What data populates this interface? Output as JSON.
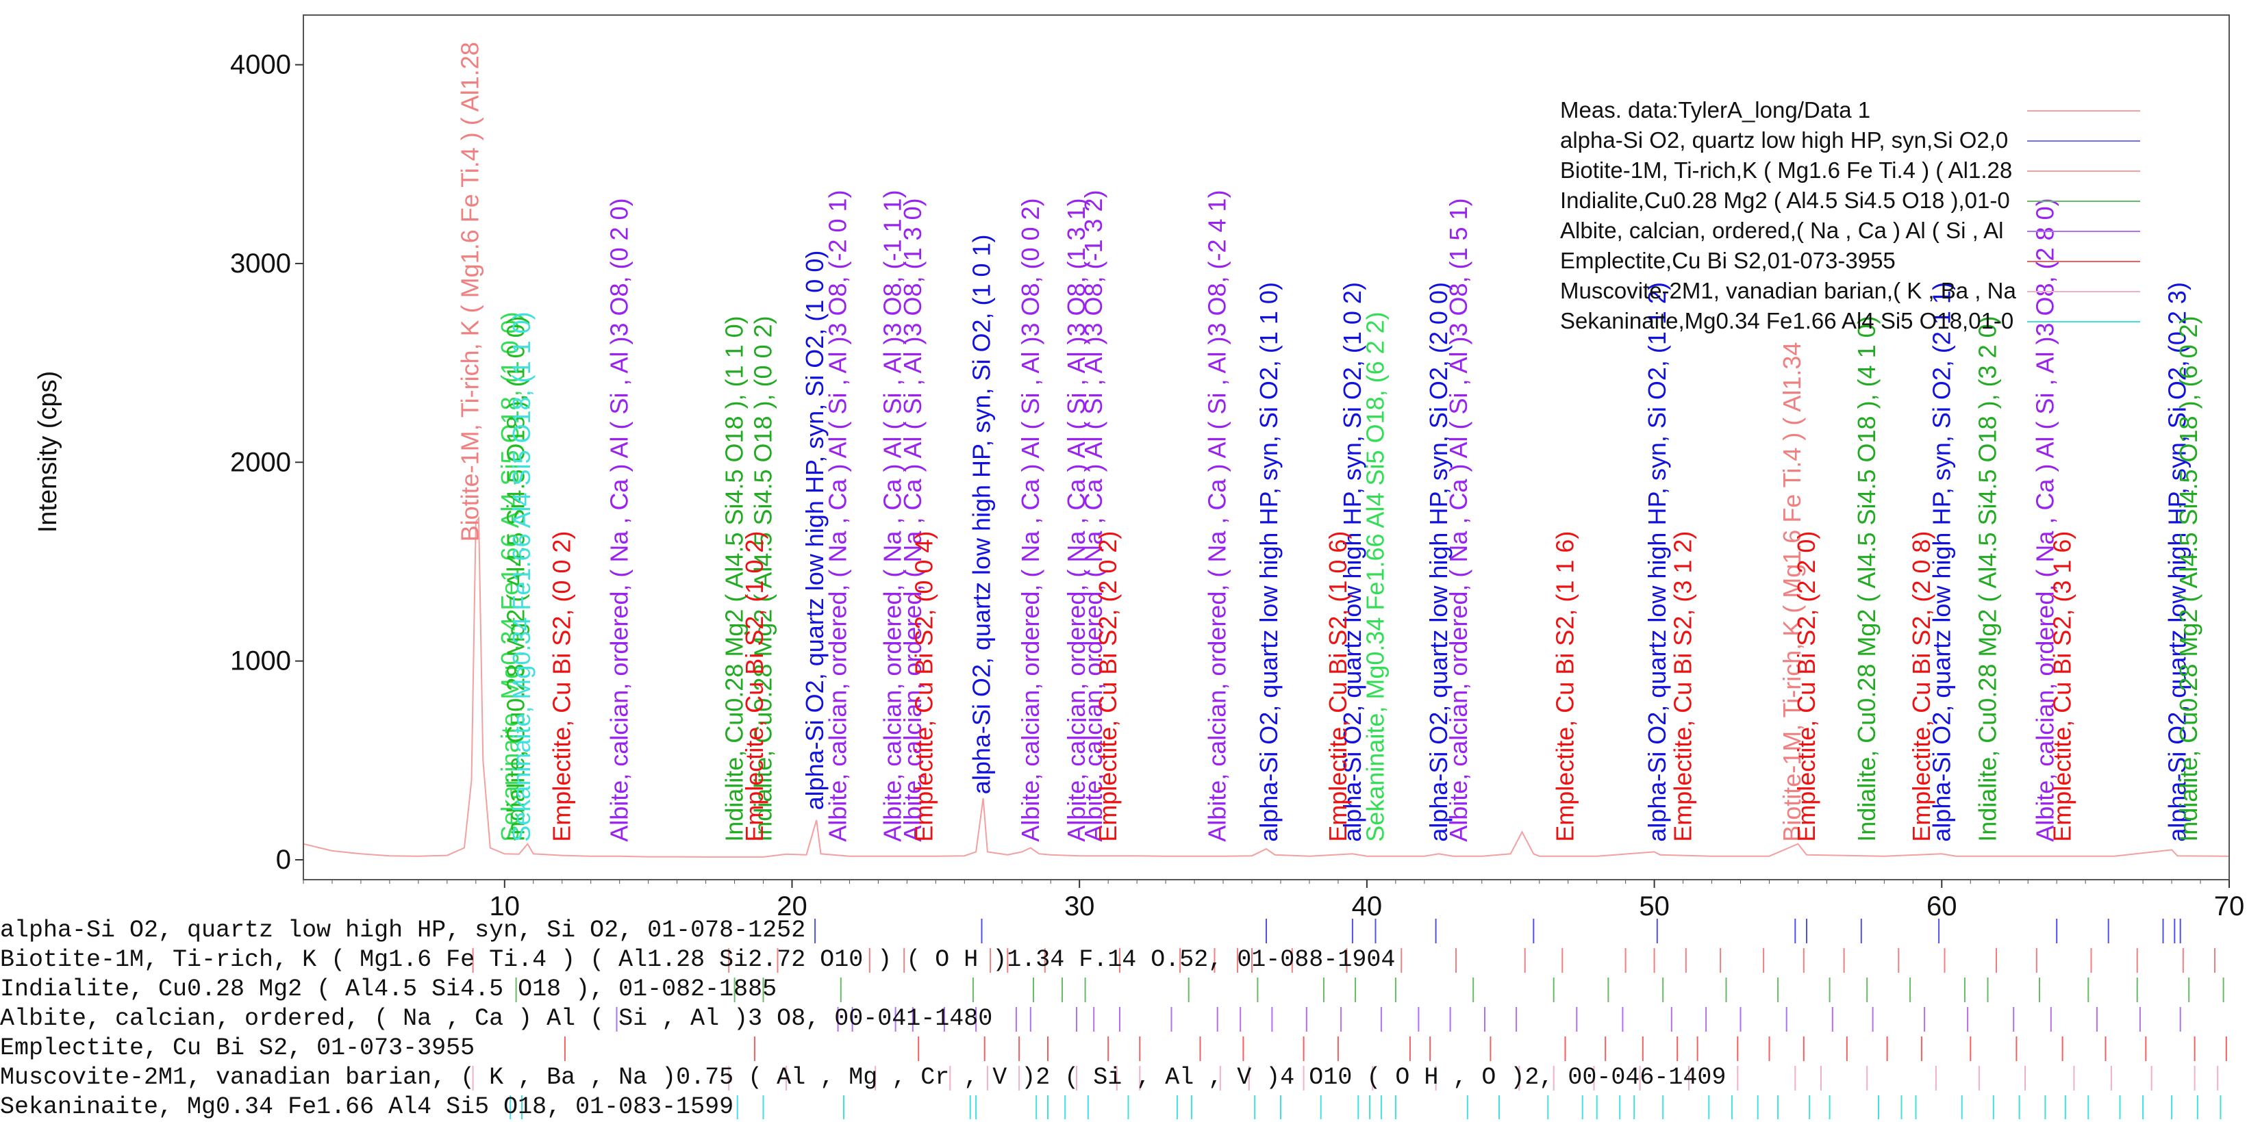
{
  "chart_data": {
    "type": "line",
    "xlim": [
      3,
      70
    ],
    "ylim": [
      -100,
      4250
    ],
    "x_ticks": [
      10,
      20,
      30,
      40,
      50,
      60,
      70
    ],
    "y_ticks": [
      0,
      1000,
      2000,
      3000,
      4000
    ],
    "ylabel": "Intensity (cps)",
    "xlabel": "",
    "measured": {
      "name": "Meas. data:TylerA_long/Data 1",
      "color": "#f4a0a0",
      "points": [
        [
          3,
          80
        ],
        [
          4,
          45
        ],
        [
          5,
          30
        ],
        [
          6,
          20
        ],
        [
          7,
          18
        ],
        [
          8,
          22
        ],
        [
          8.6,
          60
        ],
        [
          8.85,
          400
        ],
        [
          9.0,
          1700
        ],
        [
          9.1,
          1720
        ],
        [
          9.25,
          500
        ],
        [
          9.5,
          60
        ],
        [
          10,
          30
        ],
        [
          10.5,
          28
        ],
        [
          10.8,
          80
        ],
        [
          11,
          30
        ],
        [
          12,
          22
        ],
        [
          13,
          18
        ],
        [
          14,
          18
        ],
        [
          15,
          15
        ],
        [
          16,
          15
        ],
        [
          17,
          14
        ],
        [
          18,
          14
        ],
        [
          19,
          14
        ],
        [
          19.8,
          28
        ],
        [
          20.5,
          25
        ],
        [
          20.85,
          200
        ],
        [
          21.0,
          30
        ],
        [
          22,
          18
        ],
        [
          23,
          18
        ],
        [
          24,
          18
        ],
        [
          25,
          18
        ],
        [
          26,
          20
        ],
        [
          26.4,
          40
        ],
        [
          26.65,
          310
        ],
        [
          26.8,
          40
        ],
        [
          27.5,
          25
        ],
        [
          28,
          40
        ],
        [
          28.3,
          60
        ],
        [
          28.6,
          30
        ],
        [
          29,
          25
        ],
        [
          30,
          20
        ],
        [
          31,
          20
        ],
        [
          32,
          20
        ],
        [
          33,
          18
        ],
        [
          34,
          18
        ],
        [
          35,
          18
        ],
        [
          36,
          20
        ],
        [
          36.5,
          55
        ],
        [
          36.8,
          25
        ],
        [
          38,
          18
        ],
        [
          39.5,
          30
        ],
        [
          40,
          18
        ],
        [
          41,
          18
        ],
        [
          42,
          18
        ],
        [
          42.5,
          30
        ],
        [
          43,
          18
        ],
        [
          44,
          18
        ],
        [
          45,
          30
        ],
        [
          45.4,
          140
        ],
        [
          45.8,
          30
        ],
        [
          46,
          18
        ],
        [
          48,
          18
        ],
        [
          50,
          40
        ],
        [
          50.2,
          25
        ],
        [
          52,
          18
        ],
        [
          54,
          18
        ],
        [
          55,
          80
        ],
        [
          55.3,
          25
        ],
        [
          58,
          18
        ],
        [
          60,
          30
        ],
        [
          60.5,
          18
        ],
        [
          62,
          18
        ],
        [
          64,
          18
        ],
        [
          66,
          18
        ],
        [
          68,
          50
        ],
        [
          68.2,
          20
        ],
        [
          70,
          18
        ]
      ]
    },
    "legend": {
      "placement": "top-right",
      "entries": [
        {
          "text": "Meas. data:TylerA_long/Data 1",
          "color": "#f4a0a0"
        },
        {
          "text": "alpha-Si O2, quartz low high HP, syn,Si O2,0",
          "color": "#7070f0"
        },
        {
          "text": "Biotite-1M, Ti-rich,K ( Mg1.6 Fe Ti.4 ) ( Al1.28",
          "color": "#f4a0a0"
        },
        {
          "text": "Indialite,Cu0.28 Mg2 ( Al4.5 Si4.5 O18 ),01-0",
          "color": "#66bb66"
        },
        {
          "text": "Albite, calcian, ordered,( Na , Ca ) Al ( Si , Al",
          "color": "#b070f0"
        },
        {
          "text": "Emplectite,Cu Bi S2,01-073-3955",
          "color": "#f06060"
        },
        {
          "text": "Muscovite-2M1, vanadian barian,( K , Ba , Na",
          "color": "#f0b0c8"
        },
        {
          "text": "Sekaninaite,Mg0.34 Fe1.66 Al4 Si5 O18,01-0",
          "color": "#40e0e0"
        }
      ]
    },
    "peak_labels": [
      {
        "x": 8.8,
        "y": 1600,
        "text": "Biotite-1M, Ti-rich, K ( Mg1.6 Fe Ti.4 ) ( Al1.28",
        "color": "#f08080"
      },
      {
        "x": 10.2,
        "y": 90,
        "text": "Sekaninaite, Mg0.34 Fe1.66 Al4 Si5 O18, (1 0 0)",
        "color": "#33dd55"
      },
      {
        "x": 10.4,
        "y": 90,
        "text": "Indialite, Cu0.28 Mg2 ( Al4.5 Si4.5 O18 ), (1 0 0)",
        "color": "#22bb22"
      },
      {
        "x": 10.6,
        "y": 90,
        "text": "Sekaninaite, Mg0.34 Fe1.66 Al4 Si5 O18, (1 1 0)",
        "color": "#40e0e0"
      },
      {
        "x": 12.0,
        "y": 90,
        "text": "Emplectite, Cu Bi S2, (0 0 2)",
        "color": "#ee1111"
      },
      {
        "x": 14.0,
        "y": 90,
        "text": "Albite, calcian, ordered, ( Na , Ca ) Al ( Si , Al )3 O8, (0 2 0)",
        "color": "#9922ee"
      },
      {
        "x": 18.0,
        "y": 90,
        "text": "Indialite, Cu0.28 Mg2 ( Al4.5 Si4.5 O18 ), (1 1 0)",
        "color": "#22aa22"
      },
      {
        "x": 19.0,
        "y": 90,
        "text": "Indialite, Cu0.28 Mg2 ( Al4.5 Si4.5 O18 ), (0 0 2)",
        "color": "#22aa22"
      },
      {
        "x": 18.7,
        "y": 90,
        "text": "Emplectite, Cu Bi S2, (1 0 2)",
        "color": "#ee1111"
      },
      {
        "x": 20.8,
        "y": 250,
        "text": "alpha-Si O2, quartz low high HP, syn, Si O2, (1 0 0)",
        "color": "#1111dd"
      },
      {
        "x": 21.6,
        "y": 90,
        "text": "Albite, calcian, ordered, ( Na , Ca ) Al ( Si , Al )3 O8, (-2 0 1)",
        "color": "#9922ee"
      },
      {
        "x": 23.5,
        "y": 90,
        "text": "Albite, calcian, ordered, ( Na , Ca ) Al ( Si , Al )3 O8, (-1 1 1)",
        "color": "#9922ee"
      },
      {
        "x": 24.2,
        "y": 90,
        "text": "Albite, calcian, ordered, ( Na , Ca ) Al ( Si , Al )3 O8, (1 3 0)",
        "color": "#9922ee"
      },
      {
        "x": 24.6,
        "y": 90,
        "text": "Emplectite, Cu Bi S2, (0 0 4)",
        "color": "#ee1111"
      },
      {
        "x": 26.6,
        "y": 330,
        "text": "alpha-Si O2, quartz low high HP, syn, Si O2, (1 0 1)",
        "color": "#1111dd"
      },
      {
        "x": 28.3,
        "y": 90,
        "text": "Albite, calcian, ordered, ( Na , Ca ) Al ( Si , Al )3 O8, (0 0 2)",
        "color": "#9922ee"
      },
      {
        "x": 29.9,
        "y": 90,
        "text": "Albite, calcian, ordered, ( Na , Ca ) Al ( Si , Al )3 O8, (1 3 1)",
        "color": "#9922ee"
      },
      {
        "x": 30.5,
        "y": 90,
        "text": "Albite, calcian, ordered, ( Na , Ca ) Al ( Si , Al )3 O8, (-1 3 2)",
        "color": "#9922ee"
      },
      {
        "x": 31.0,
        "y": 90,
        "text": "Emplectite, Cu Bi S2, (2 0 2)",
        "color": "#ee1111"
      },
      {
        "x": 34.8,
        "y": 90,
        "text": "Albite, calcian, ordered, ( Na , Ca ) Al ( Si , Al )3 O8, (-2 4 1)",
        "color": "#9922ee"
      },
      {
        "x": 36.6,
        "y": 90,
        "text": "alpha-Si O2, quartz low high HP, syn, Si O2, (1 1 0)",
        "color": "#1111dd"
      },
      {
        "x": 39.5,
        "y": 90,
        "text": "alpha-Si O2, quartz low high HP, syn, Si O2, (1 0 2)",
        "color": "#1111dd"
      },
      {
        "x": 39.0,
        "y": 90,
        "text": "Emplectite, Cu Bi S2, (1 0 6)",
        "color": "#ee1111"
      },
      {
        "x": 40.3,
        "y": 90,
        "text": "Sekaninaite, Mg0.34 Fe1.66 Al4 Si5 O18, (6 2 2)",
        "color": "#33dd55"
      },
      {
        "x": 42.5,
        "y": 90,
        "text": "alpha-Si O2, quartz low high HP, syn, Si O2, (2 0 0)",
        "color": "#1111dd"
      },
      {
        "x": 43.2,
        "y": 90,
        "text": "Albite, calcian, ordered, ( Na , Ca ) Al ( Si , Al )3 O8, (1 5 1)",
        "color": "#9922ee"
      },
      {
        "x": 46.9,
        "y": 90,
        "text": "Emplectite, Cu Bi S2, (1 1 6)",
        "color": "#ee1111"
      },
      {
        "x": 50.1,
        "y": 90,
        "text": "alpha-Si O2, quartz low high HP, syn, Si O2, (1 1 2)",
        "color": "#1111dd"
      },
      {
        "x": 51.0,
        "y": 90,
        "text": "Emplectite, Cu Bi S2, (3 1 2)",
        "color": "#ee1111"
      },
      {
        "x": 54.8,
        "y": 90,
        "text": "Biotite-1M, Ti-rich, K ( Mg1.6 Fe Ti.4 ) ( Al1.34",
        "color": "#f08080"
      },
      {
        "x": 55.3,
        "y": 90,
        "text": "Emplectite, Cu Bi S2, (2 2 0)",
        "color": "#ee1111"
      },
      {
        "x": 57.4,
        "y": 90,
        "text": "Indialite, Cu0.28 Mg2 ( Al4.5 Si4.5 O18 ), (4 1 0)",
        "color": "#22aa22"
      },
      {
        "x": 59.3,
        "y": 90,
        "text": "Emplectite, Cu Bi S2, (2 0 8)",
        "color": "#ee1111"
      },
      {
        "x": 60.0,
        "y": 90,
        "text": "alpha-Si O2, quartz low high HP, syn, Si O2, (2 1 1)",
        "color": "#1111dd"
      },
      {
        "x": 61.6,
        "y": 90,
        "text": "Indialite, Cu0.28 Mg2 ( Al4.5 Si4.5 O18 ), (3 2 0)",
        "color": "#22aa22"
      },
      {
        "x": 63.6,
        "y": 90,
        "text": "Albite, calcian, ordered, ( Na , Ca ) Al ( Si , Al )3 O8, (2 8 0)",
        "color": "#9922ee"
      },
      {
        "x": 64.2,
        "y": 90,
        "text": "Emplectite, Cu Bi S2, (3 1 6)",
        "color": "#ee1111"
      },
      {
        "x": 68.2,
        "y": 90,
        "text": "alpha-Si O2, quartz low high HP, syn, Si O2, (0 2 3)",
        "color": "#1111dd"
      },
      {
        "x": 68.6,
        "y": 90,
        "text": "Indialite, Cu0.28 Mg2 ( Al4.5 Si4.5 O18 ), (6 0 2)",
        "color": "#22aa22"
      }
    ],
    "reference_patterns": [
      {
        "name": "alpha-Si O2, quartz low high HP, syn, Si O2, 01-078-1252",
        "color": "#5050ee",
        "positions": [
          20.8,
          26.6,
          36.5,
          39.5,
          40.3,
          42.4,
          45.8,
          50.1,
          54.9,
          55.3,
          57.2,
          59.9,
          64.0,
          65.8,
          67.7,
          68.1,
          68.3
        ]
      },
      {
        "name": "Biotite-1M, Ti-rich, K ( Mg1.6 Fe Ti.4 ) ( Al1.28 Si2.72 O10 ) ( O H )1.34 F.14 O.52, 01-088-1904",
        "color": "#f08080",
        "positions": [
          8.9,
          17.8,
          19.5,
          22.7,
          23.9,
          26.9,
          27.5,
          28.8,
          31.4,
          33.5,
          34.7,
          35.5,
          36.0,
          37.4,
          39.3,
          41.2,
          43.1,
          45.5,
          46.8,
          49.0,
          50.0,
          51.1,
          52.3,
          53.8,
          55.2,
          56.6,
          58.5,
          60.1,
          61.9,
          63.3,
          65.2,
          66.8,
          68.4,
          69.5
        ]
      },
      {
        "name": "Indialite, Cu0.28 Mg2 ( Al4.5 Si4.5 O18 ), 01-082-1885",
        "color": "#66bb66",
        "positions": [
          10.4,
          18.0,
          19.0,
          21.7,
          26.3,
          28.4,
          29.4,
          30.2,
          33.8,
          36.2,
          38.5,
          39.6,
          41.0,
          43.7,
          46.5,
          48.4,
          50.3,
          52.5,
          54.3,
          56.1,
          57.4,
          58.9,
          60.8,
          61.6,
          63.4,
          65.1,
          66.8,
          68.6,
          69.8
        ]
      },
      {
        "name": "Albite, calcian, ordered, ( Na , Ca ) Al ( Si , Al )3 O8, 00-041-1480",
        "color": "#b070f0",
        "positions": [
          13.9,
          21.6,
          22.1,
          23.6,
          24.2,
          25.3,
          26.4,
          27.8,
          28.3,
          29.9,
          30.5,
          31.4,
          33.2,
          34.8,
          35.6,
          36.7,
          37.9,
          39.1,
          40.5,
          41.8,
          42.9,
          44.1,
          45.2,
          47.3,
          48.9,
          50.6,
          51.8,
          53.0,
          54.6,
          56.2,
          57.6,
          59.4,
          60.9,
          62.5,
          63.8,
          65.4,
          66.9,
          68.3
        ]
      },
      {
        "name": "Emplectite, Cu Bi S2, 01-073-3955",
        "color": "#f06060",
        "positions": [
          12.1,
          18.7,
          24.4,
          26.7,
          27.9,
          28.9,
          31.0,
          32.1,
          34.2,
          35.7,
          37.8,
          39.0,
          41.5,
          42.2,
          44.3,
          46.9,
          48.3,
          49.6,
          50.8,
          51.5,
          52.9,
          54.0,
          55.2,
          56.7,
          58.1,
          59.3,
          61.0,
          62.6,
          64.2,
          65.7,
          67.1,
          68.8,
          69.9
        ]
      },
      {
        "name": "Muscovite-2M1, vanadian barian, ( K , Ba , Na )0.75 ( Al , Mg , Cr , V )2 ( Si , Al , V )4 O10 ( O H , O )2, 00-046-1409",
        "color": "#f0b0c8",
        "positions": [
          8.9,
          17.8,
          19.8,
          22.9,
          25.5,
          26.8,
          27.9,
          29.9,
          31.3,
          32.1,
          34.9,
          35.9,
          37.8,
          40.2,
          42.4,
          45.3,
          46.5,
          47.9,
          49.5,
          51.2,
          52.9,
          54.9,
          55.8,
          57.4,
          59.8,
          61.3,
          62.9,
          64.6,
          65.9,
          67.3,
          68.8,
          69.6
        ]
      },
      {
        "name": "Sekaninaite, Mg0.34 Fe1.66 Al4 Si5 O18, 01-083-1599",
        "color": "#40e0e0",
        "positions": [
          10.2,
          10.6,
          18.1,
          19.0,
          21.8,
          26.2,
          26.4,
          28.5,
          28.9,
          29.5,
          30.3,
          31.7,
          33.4,
          33.9,
          36.1,
          37.0,
          38.4,
          39.7,
          40.1,
          40.5,
          41.0,
          43.5,
          44.6,
          46.3,
          47.5,
          48.0,
          48.8,
          49.3,
          50.3,
          51.9,
          52.7,
          53.6,
          54.3,
          55.4,
          56.1,
          57.8,
          58.6,
          59.1,
          60.7,
          61.8,
          62.7,
          63.6,
          64.3,
          65.1,
          66.2,
          67.0,
          68.0,
          68.9,
          69.7
        ]
      }
    ]
  }
}
